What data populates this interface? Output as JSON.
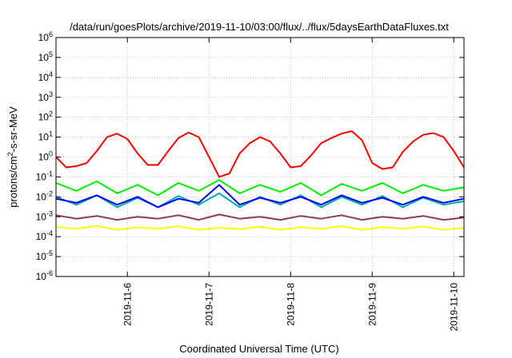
{
  "chart_data": {
    "type": "line",
    "title": "/data/run/goesPlots/archive/2019-11-10/03:00/flux/../flux/5daysEarthDataFluxes.txt",
    "xlabel": "Coordinated Universal Time (UTC)",
    "ylabel": {
      "pre": "protons/cm",
      "sup": "2",
      "post": "-s-sr-MeV"
    },
    "yscale": "log",
    "ylim": [
      1e-06,
      1000000
    ],
    "xlim": [
      "2019-11-05T03:00",
      "2019-11-10T03:00"
    ],
    "grid": true,
    "ytick_labels": [
      {
        "value": 1e-06,
        "mantissa": "10",
        "exp": "-6"
      },
      {
        "value": 1e-05,
        "mantissa": "10",
        "exp": "-5"
      },
      {
        "value": 0.0001,
        "mantissa": "10",
        "exp": "-4"
      },
      {
        "value": 0.001,
        "mantissa": "10",
        "exp": "-3"
      },
      {
        "value": 0.01,
        "mantissa": "10",
        "exp": "-2"
      },
      {
        "value": 0.1,
        "mantissa": "10",
        "exp": "-1"
      },
      {
        "value": 1,
        "mantissa": "10",
        "exp": "0"
      },
      {
        "value": 10,
        "mantissa": "10",
        "exp": "1"
      },
      {
        "value": 100,
        "mantissa": "10",
        "exp": "2"
      },
      {
        "value": 1000,
        "mantissa": "10",
        "exp": "3"
      },
      {
        "value": 10000,
        "mantissa": "10",
        "exp": "4"
      },
      {
        "value": 100000,
        "mantissa": "10",
        "exp": "5"
      },
      {
        "value": 1000000,
        "mantissa": "10",
        "exp": "6"
      }
    ],
    "xtick_labels": [
      {
        "value": "2019-11-06T00:00",
        "label": "2019-11-6"
      },
      {
        "value": "2019-11-07T00:00",
        "label": "2019-11-7"
      },
      {
        "value": "2019-11-08T00:00",
        "label": "2019-11-8"
      },
      {
        "value": "2019-11-09T00:00",
        "label": "2019-11-9"
      },
      {
        "value": "2019-11-10T00:00",
        "label": "2019-11-10"
      }
    ],
    "series": [
      {
        "color": "#ff0000",
        "x": [
          "2019-11-05T03:00",
          "2019-11-05T06:00",
          "2019-11-05T09:00",
          "2019-11-05T12:00",
          "2019-11-05T15:00",
          "2019-11-05T18:00",
          "2019-11-05T21:00",
          "2019-11-06T00:00",
          "2019-11-06T03:00",
          "2019-11-06T06:00",
          "2019-11-06T09:00",
          "2019-11-06T12:00",
          "2019-11-06T15:00",
          "2019-11-06T18:00",
          "2019-11-06T21:00",
          "2019-11-07T00:00",
          "2019-11-07T03:00",
          "2019-11-07T06:00",
          "2019-11-07T09:00",
          "2019-11-07T12:00",
          "2019-11-07T15:00",
          "2019-11-07T18:00",
          "2019-11-07T21:00",
          "2019-11-08T00:00",
          "2019-11-08T03:00",
          "2019-11-08T06:00",
          "2019-11-08T09:00",
          "2019-11-08T12:00",
          "2019-11-08T15:00",
          "2019-11-08T18:00",
          "2019-11-08T21:00",
          "2019-11-09T00:00",
          "2019-11-09T03:00",
          "2019-11-09T06:00",
          "2019-11-09T09:00",
          "2019-11-09T12:00",
          "2019-11-09T15:00",
          "2019-11-09T18:00",
          "2019-11-09T21:00",
          "2019-11-10T00:00",
          "2019-11-10T03:00"
        ],
        "y": [
          1.0,
          0.3,
          0.35,
          0.5,
          2,
          10,
          15,
          8,
          1.5,
          0.4,
          0.4,
          2,
          9,
          17,
          10,
          1,
          0.1,
          0.15,
          1.5,
          5,
          10,
          6,
          1.5,
          0.3,
          0.35,
          1.2,
          5,
          9,
          15,
          20,
          7,
          0.5,
          0.25,
          0.3,
          1.8,
          6,
          13,
          16,
          10,
          2,
          0.3
        ]
      },
      {
        "color": "#00ee00",
        "x": [
          "2019-11-05T03:00",
          "2019-11-05T09:00",
          "2019-11-05T15:00",
          "2019-11-05T21:00",
          "2019-11-06T03:00",
          "2019-11-06T09:00",
          "2019-11-06T15:00",
          "2019-11-06T21:00",
          "2019-11-07T03:00",
          "2019-11-07T09:00",
          "2019-11-07T15:00",
          "2019-11-07T21:00",
          "2019-11-08T03:00",
          "2019-11-08T09:00",
          "2019-11-08T15:00",
          "2019-11-08T21:00",
          "2019-11-09T03:00",
          "2019-11-09T09:00",
          "2019-11-09T15:00",
          "2019-11-09T21:00",
          "2019-11-10T03:00"
        ],
        "y": [
          0.05,
          0.02,
          0.06,
          0.015,
          0.04,
          0.012,
          0.05,
          0.02,
          0.07,
          0.015,
          0.04,
          0.018,
          0.05,
          0.012,
          0.045,
          0.02,
          0.05,
          0.015,
          0.04,
          0.02,
          0.03
        ]
      },
      {
        "color": "#00aaaa",
        "x": [
          "2019-11-05T03:00",
          "2019-11-05T09:00",
          "2019-11-05T15:00",
          "2019-11-05T21:00",
          "2019-11-06T03:00",
          "2019-11-06T09:00",
          "2019-11-06T15:00",
          "2019-11-06T21:00",
          "2019-11-07T03:00",
          "2019-11-07T09:00",
          "2019-11-07T15:00",
          "2019-11-07T21:00",
          "2019-11-08T03:00",
          "2019-11-08T09:00",
          "2019-11-08T15:00",
          "2019-11-08T21:00",
          "2019-11-09T03:00",
          "2019-11-09T09:00",
          "2019-11-09T15:00",
          "2019-11-09T21:00",
          "2019-11-10T03:00"
        ],
        "y": [
          0.01,
          0.004,
          0.012,
          0.003,
          0.009,
          0.003,
          0.011,
          0.004,
          0.015,
          0.003,
          0.01,
          0.004,
          0.012,
          0.003,
          0.01,
          0.004,
          0.011,
          0.003,
          0.009,
          0.004,
          0.006
        ]
      },
      {
        "color": "#0000ff",
        "x": [
          "2019-11-05T03:00",
          "2019-11-05T09:00",
          "2019-11-05T15:00",
          "2019-11-05T21:00",
          "2019-11-06T03:00",
          "2019-11-06T09:00",
          "2019-11-06T15:00",
          "2019-11-06T21:00",
          "2019-11-07T03:00",
          "2019-11-07T09:00",
          "2019-11-07T15:00",
          "2019-11-07T21:00",
          "2019-11-08T03:00",
          "2019-11-08T09:00",
          "2019-11-08T15:00",
          "2019-11-08T21:00",
          "2019-11-09T03:00",
          "2019-11-09T09:00",
          "2019-11-09T15:00",
          "2019-11-09T21:00",
          "2019-11-10T03:00"
        ],
        "y": [
          0.008,
          0.005,
          0.012,
          0.004,
          0.01,
          0.003,
          0.008,
          0.005,
          0.04,
          0.004,
          0.009,
          0.005,
          0.01,
          0.004,
          0.012,
          0.005,
          0.009,
          0.004,
          0.01,
          0.005,
          0.008
        ]
      },
      {
        "color": "#8b3a62",
        "x": [
          "2019-11-05T03:00",
          "2019-11-05T09:00",
          "2019-11-05T15:00",
          "2019-11-05T21:00",
          "2019-11-06T03:00",
          "2019-11-06T09:00",
          "2019-11-06T15:00",
          "2019-11-06T21:00",
          "2019-11-07T03:00",
          "2019-11-07T09:00",
          "2019-11-07T15:00",
          "2019-11-07T21:00",
          "2019-11-08T03:00",
          "2019-11-08T09:00",
          "2019-11-08T15:00",
          "2019-11-08T21:00",
          "2019-11-09T03:00",
          "2019-11-09T09:00",
          "2019-11-09T15:00",
          "2019-11-09T21:00",
          "2019-11-10T03:00"
        ],
        "y": [
          0.0012,
          0.0008,
          0.0011,
          0.0007,
          0.001,
          0.0008,
          0.0012,
          0.0007,
          0.0013,
          0.0008,
          0.001,
          0.0007,
          0.0011,
          0.0008,
          0.0012,
          0.0007,
          0.001,
          0.0008,
          0.0011,
          0.0007,
          0.0009
        ]
      },
      {
        "color": "#ffff00",
        "x": [
          "2019-11-05T03:00",
          "2019-11-05T09:00",
          "2019-11-05T15:00",
          "2019-11-05T21:00",
          "2019-11-06T03:00",
          "2019-11-06T09:00",
          "2019-11-06T15:00",
          "2019-11-06T21:00",
          "2019-11-07T03:00",
          "2019-11-07T09:00",
          "2019-11-07T15:00",
          "2019-11-07T21:00",
          "2019-11-08T03:00",
          "2019-11-08T09:00",
          "2019-11-08T15:00",
          "2019-11-08T21:00",
          "2019-11-09T03:00",
          "2019-11-09T09:00",
          "2019-11-09T15:00",
          "2019-11-09T21:00",
          "2019-11-10T03:00"
        ],
        "y": [
          0.0003,
          0.00025,
          0.00035,
          0.00022,
          0.0003,
          0.00025,
          0.00033,
          0.00022,
          0.00028,
          0.00024,
          0.00032,
          0.00022,
          0.0003,
          0.00025,
          0.00034,
          0.00022,
          0.0003,
          0.00025,
          0.00033,
          0.00022,
          0.00028
        ]
      }
    ]
  }
}
